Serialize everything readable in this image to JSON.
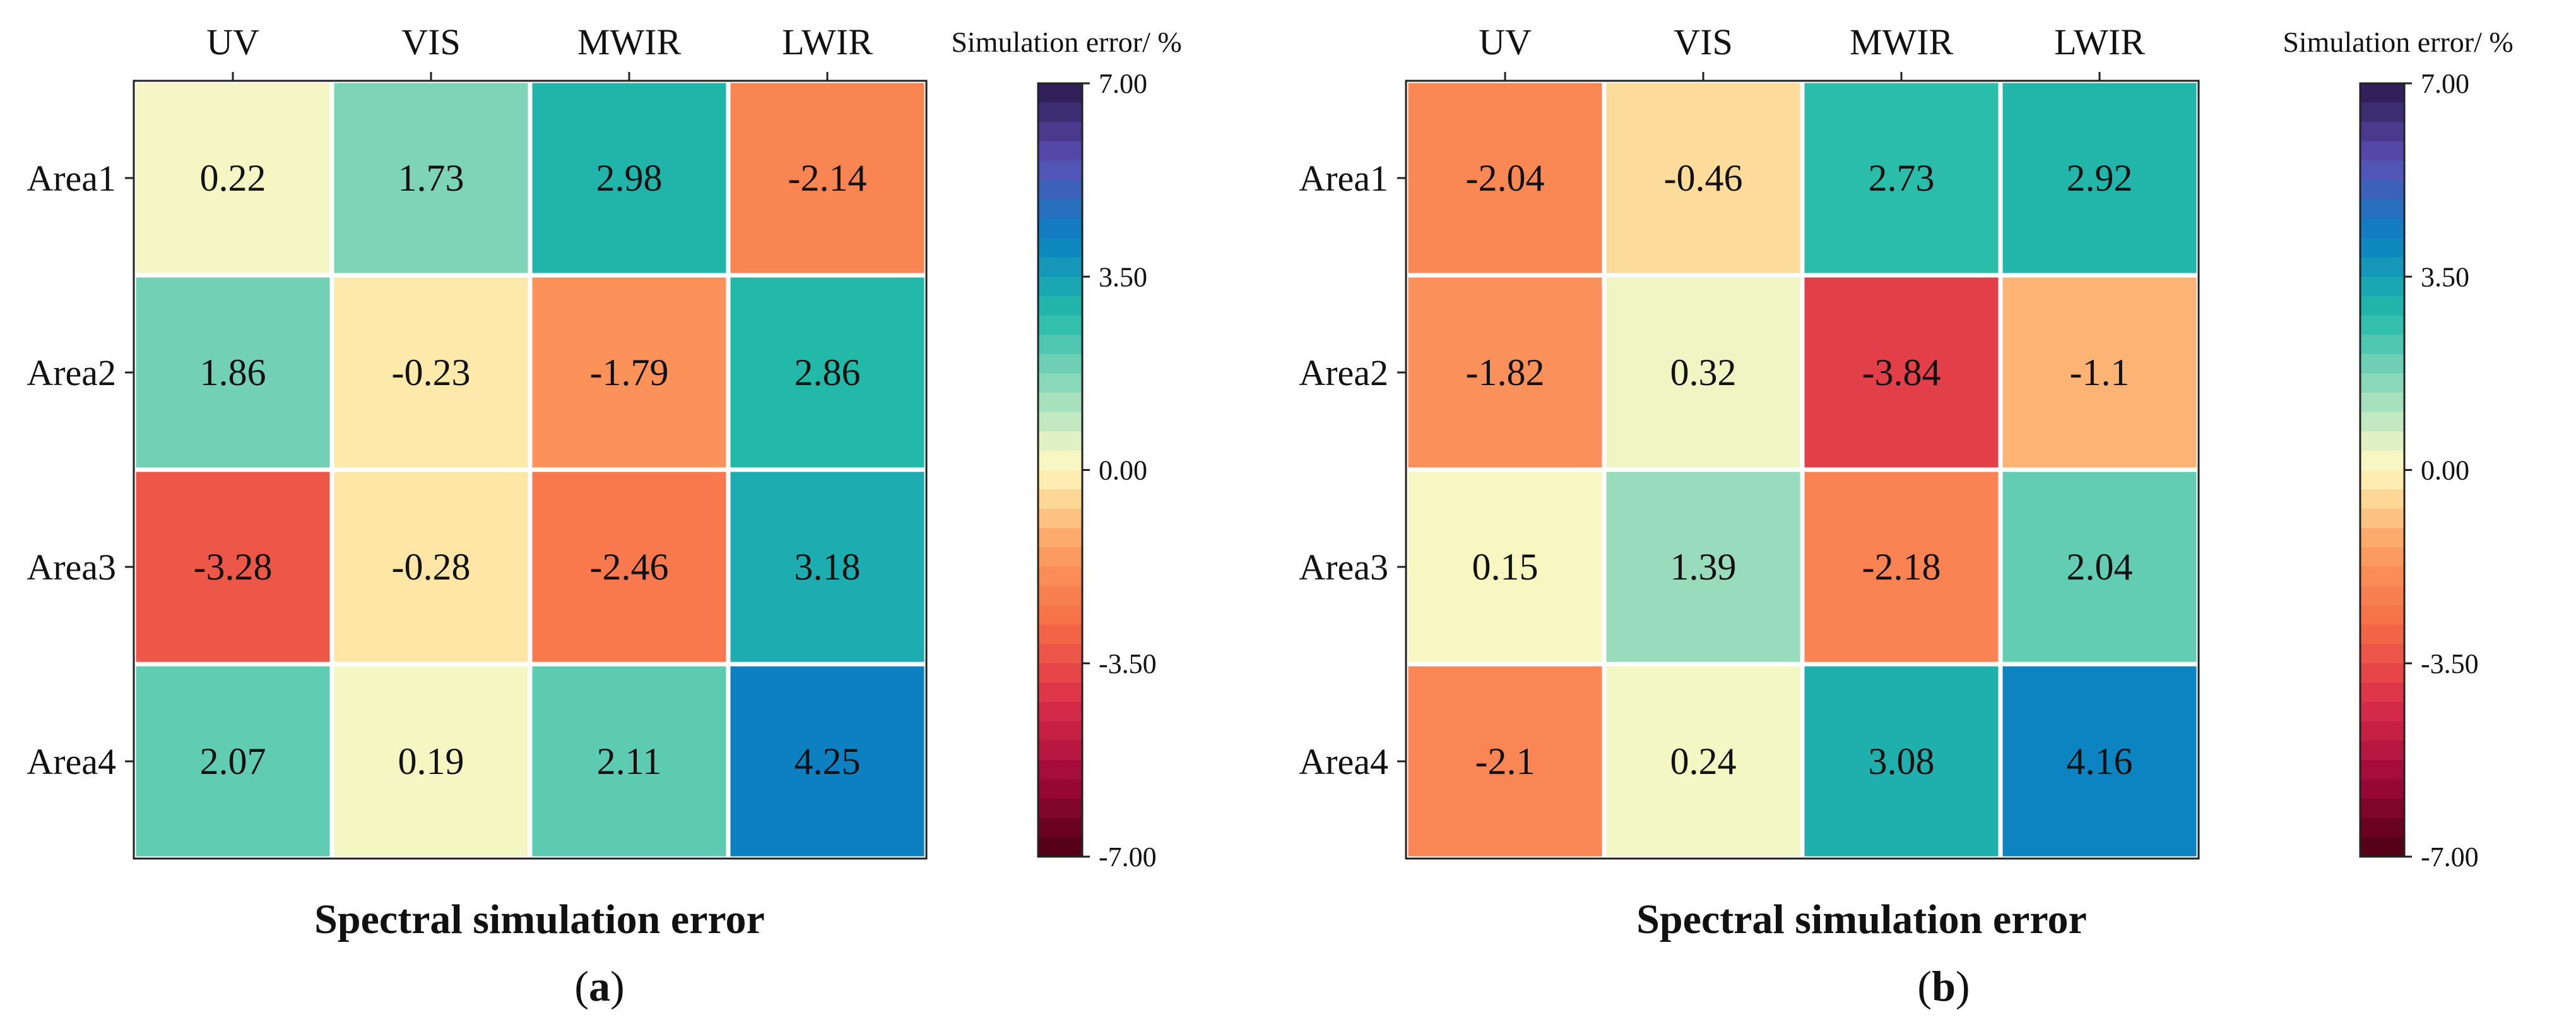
{
  "chart_data": [
    {
      "type": "heatmap",
      "title": "Spectral simulation error",
      "panel_label": "a",
      "columns": [
        "UV",
        "VIS",
        "MWIR",
        "LWIR"
      ],
      "rows": [
        "Area1",
        "Area2",
        "Area3",
        "Area4"
      ],
      "cell_labels": [
        [
          "0.22",
          "1.73",
          "2.98",
          "-2.14"
        ],
        [
          "1.86",
          "-0.23",
          "-1.79",
          "2.86"
        ],
        [
          "-3.28",
          "-0.28",
          "-2.46",
          "3.18"
        ],
        [
          "2.07",
          "0.19",
          "2.11",
          "4.25"
        ]
      ],
      "values": [
        [
          0.22,
          1.73,
          2.98,
          -2.14
        ],
        [
          1.86,
          -0.23,
          -1.79,
          2.86
        ],
        [
          -3.28,
          -0.28,
          -2.46,
          3.18
        ],
        [
          2.07,
          0.19,
          2.11,
          4.25
        ]
      ],
      "colorbar": {
        "title": "Simulation error/ %",
        "range": [
          -7.0,
          7.0
        ],
        "tick_values": [
          7.0,
          3.5,
          0.0,
          -3.5,
          -7.0
        ],
        "tick_labels": [
          "7.00",
          "3.50",
          "0.00",
          "-3.50",
          "-7.00"
        ]
      }
    },
    {
      "type": "heatmap",
      "title": "Spectral simulation error",
      "panel_label": "b",
      "columns": [
        "UV",
        "VIS",
        "MWIR",
        "LWIR"
      ],
      "rows": [
        "Area1",
        "Area2",
        "Area3",
        "Area4"
      ],
      "cell_labels": [
        [
          "-2.04",
          "-0.46",
          "2.73",
          "2.92"
        ],
        [
          "-1.82",
          "0.32",
          "-3.84",
          "-1.1"
        ],
        [
          "0.15",
          "1.39",
          "-2.18",
          "2.04"
        ],
        [
          "-2.1",
          "0.24",
          "3.08",
          "4.16"
        ]
      ],
      "values": [
        [
          -2.04,
          -0.46,
          2.73,
          2.92
        ],
        [
          -1.82,
          0.32,
          -3.84,
          -1.1
        ],
        [
          0.15,
          1.39,
          -2.18,
          2.04
        ],
        [
          -2.1,
          0.24,
          3.08,
          4.16
        ]
      ],
      "colorbar": {
        "title": "Simulation error/ %",
        "range": [
          -7.0,
          7.0
        ],
        "tick_values": [
          7.0,
          3.5,
          0.0,
          -3.5,
          -7.0
        ],
        "tick_labels": [
          "7.00",
          "3.50",
          "0.00",
          "-3.50",
          "-7.00"
        ]
      }
    }
  ],
  "colormap": {
    "name": "Spectral",
    "stops": [
      {
        "at": -7.0,
        "color": "#4a0012"
      },
      {
        "at": -5.6,
        "color": "#a0083a"
      },
      {
        "at": -4.2,
        "color": "#dc2f49"
      },
      {
        "at": -2.8,
        "color": "#f66c46"
      },
      {
        "at": -1.4,
        "color": "#fca062"
      },
      {
        "at": -0.35,
        "color": "#fde2a0"
      },
      {
        "at": 0.0,
        "color": "#fdf8c0"
      },
      {
        "at": 0.35,
        "color": "#eef6c4"
      },
      {
        "at": 1.4,
        "color": "#98dcbc"
      },
      {
        "at": 2.8,
        "color": "#24bba8"
      },
      {
        "at": 4.2,
        "color": "#0a82c2"
      },
      {
        "at": 5.6,
        "color": "#5a4eb4"
      },
      {
        "at": 7.0,
        "color": "#2c1a4e"
      }
    ]
  }
}
